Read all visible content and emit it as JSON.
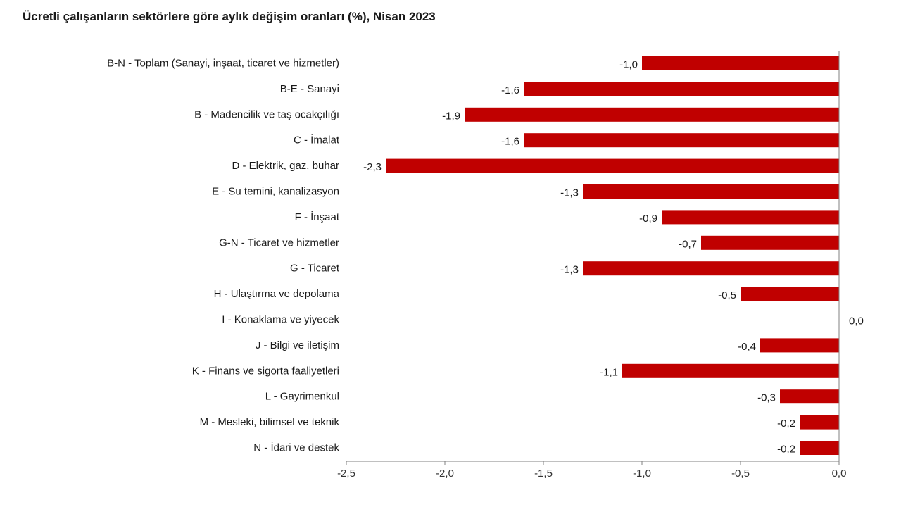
{
  "title": "Ücretli çalışanların sektörlere göre aylık değişim oranları (%), Nisan 2023",
  "colors": {
    "bar": "#c00000",
    "axis": "#808080"
  },
  "chart_data": {
    "type": "bar",
    "orientation": "horizontal",
    "title": "Ücretli çalışanların sektörlere göre aylık değişim oranları (%), Nisan 2023",
    "xlabel": "",
    "ylabel": "",
    "xlim": [
      -2.5,
      0.0
    ],
    "grid": false,
    "categories": [
      "B-N - Toplam (Sanayi, inşaat, ticaret ve hizmetler)",
      "B-E - Sanayi",
      "B - Madencilik ve taş ocakçılığı",
      "C - İmalat",
      "D - Elektrik, gaz, buhar",
      "E - Su temini, kanalizasyon",
      "F - İnşaat",
      "G-N - Ticaret ve hizmetler",
      "G - Ticaret",
      "H - Ulaştırma ve depolama",
      "I - Konaklama ve yiyecek",
      "J - Bilgi ve iletişim",
      "K - Finans ve sigorta faaliyetleri",
      "L - Gayrimenkul",
      "M - Mesleki, bilimsel ve teknik",
      "N - İdari ve destek"
    ],
    "values": [
      -1.0,
      -1.6,
      -1.9,
      -1.6,
      -2.3,
      -1.3,
      -0.9,
      -0.7,
      -1.3,
      -0.5,
      0.0,
      -0.4,
      -1.1,
      -0.3,
      -0.2,
      -0.2
    ],
    "value_labels": [
      "-1,0",
      "-1,6",
      "-1,9",
      "-1,6",
      "-2,3",
      "-1,3",
      "-0,9",
      "-0,7",
      "-1,3",
      "-0,5",
      "0,0",
      "-0,4",
      "-1,1",
      "-0,3",
      "-0,2",
      "-0,2"
    ],
    "x_ticks": [
      -2.5,
      -2.0,
      -1.5,
      -1.0,
      -0.5,
      0.0
    ],
    "x_tick_labels": [
      "-2,5",
      "-2,0",
      "-1,5",
      "-1,0",
      "-0,5",
      "0,0"
    ]
  }
}
